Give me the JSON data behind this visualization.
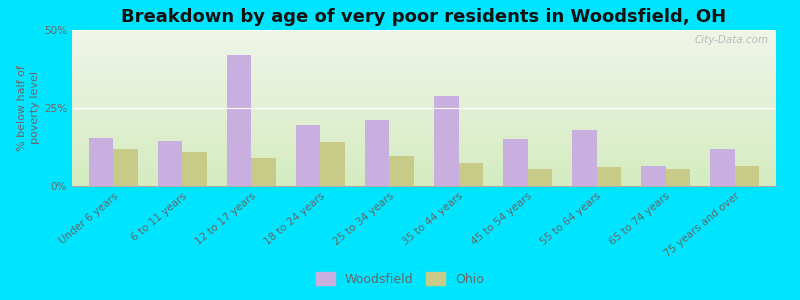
{
  "title": "Breakdown by age of very poor residents in Woodsfield, OH",
  "ylabel": "% below half of\npoverty level",
  "categories": [
    "Under 6 years",
    "6 to 11 years",
    "12 to 17 years",
    "18 to 24 years",
    "25 to 34 years",
    "35 to 44 years",
    "45 to 54 years",
    "55 to 64 years",
    "65 to 74 years",
    "75 years and over"
  ],
  "woodsfield_values": [
    15.5,
    14.5,
    42.0,
    19.5,
    21.0,
    29.0,
    15.0,
    18.0,
    6.5,
    12.0
  ],
  "ohio_values": [
    12.0,
    11.0,
    9.0,
    14.0,
    9.5,
    7.5,
    5.5,
    6.0,
    5.5,
    6.5
  ],
  "woodsfield_color": "#c9aee0",
  "ohio_color": "#c8cb88",
  "background_outer": "#00e5ff",
  "background_plot_top": "#f0f5e8",
  "background_plot_bottom": "#d4ecc0",
  "ylim": [
    0,
    50
  ],
  "yticks": [
    0,
    25,
    50
  ],
  "ytick_labels": [
    "0%",
    "25%",
    "50%"
  ],
  "title_fontsize": 13,
  "axis_label_fontsize": 8,
  "tick_fontsize": 7.5,
  "legend_labels": [
    "Woodsfield",
    "Ohio"
  ],
  "bar_width": 0.35,
  "watermark": "City-Data.com"
}
